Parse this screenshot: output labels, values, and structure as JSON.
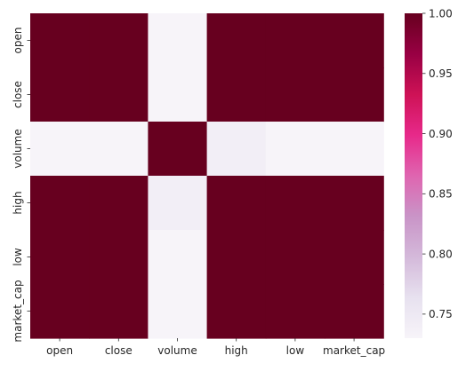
{
  "chart_data": {
    "type": "heatmap",
    "x_categories": [
      "open",
      "close",
      "volume",
      "high",
      "low",
      "market_cap"
    ],
    "y_categories": [
      "open",
      "close",
      "volume",
      "high",
      "low",
      "market_cap"
    ],
    "values": [
      [
        1.0,
        1.0,
        0.73,
        1.0,
        1.0,
        1.0
      ],
      [
        1.0,
        1.0,
        0.73,
        1.0,
        1.0,
        1.0
      ],
      [
        0.73,
        0.73,
        1.0,
        0.74,
        0.73,
        0.73
      ],
      [
        1.0,
        1.0,
        0.74,
        1.0,
        1.0,
        1.0
      ],
      [
        1.0,
        1.0,
        0.73,
        1.0,
        1.0,
        1.0
      ],
      [
        1.0,
        1.0,
        0.73,
        1.0,
        1.0,
        1.0
      ]
    ],
    "colorbar": {
      "min": 0.73,
      "max": 1.0,
      "ticks": [
        "1.00",
        "0.95",
        "0.90",
        "0.85",
        "0.80",
        "0.75"
      ],
      "tick_values": [
        1.0,
        0.95,
        0.9,
        0.85,
        0.8,
        0.75
      ],
      "colormap": "PuRd",
      "colors": [
        "#f7f4f9",
        "#e7e1ef",
        "#d4b9da",
        "#c994c7",
        "#df65b0",
        "#e7298a",
        "#ce1256",
        "#980043",
        "#67001f"
      ]
    },
    "title": "",
    "xlabel": "",
    "ylabel": ""
  }
}
